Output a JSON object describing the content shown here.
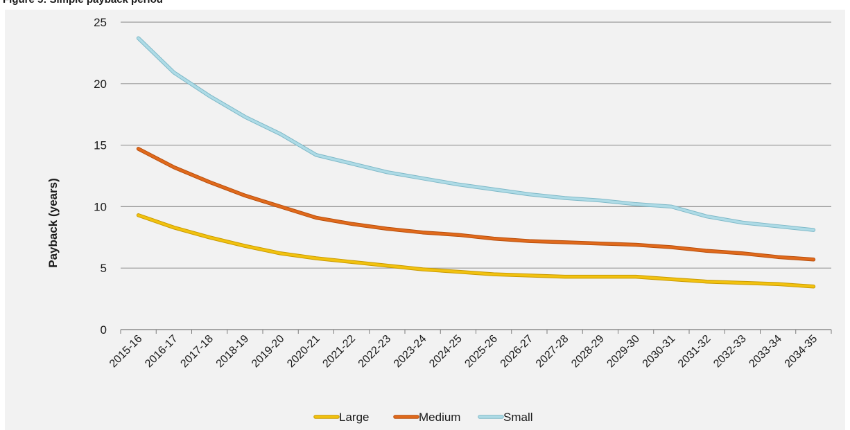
{
  "header": {
    "text": "Figure 5: Simple payback period"
  },
  "chart_data": {
    "type": "line",
    "title": "",
    "xlabel": "",
    "ylabel": "Payback (years)",
    "ylim": [
      0,
      25
    ],
    "yticks": [
      0,
      5,
      10,
      15,
      20,
      25
    ],
    "grid": "horizontal",
    "legend_position": "bottom",
    "categories": [
      "2015-16",
      "2016-17",
      "2017-18",
      "2018-19",
      "2019-20",
      "2020-21",
      "2021-22",
      "2022-23",
      "2023-24",
      "2024-25",
      "2025-26",
      "2026-27",
      "2027-28",
      "2028-29",
      "2029-30",
      "2030-31",
      "2031-32",
      "2032-33",
      "2033-34",
      "2034-35"
    ],
    "series": [
      {
        "name": "Large",
        "color": "#f2c20f",
        "outline": "#c99a00",
        "values": [
          9.3,
          8.3,
          7.5,
          6.8,
          6.2,
          5.8,
          5.5,
          5.2,
          4.9,
          4.7,
          4.5,
          4.4,
          4.3,
          4.3,
          4.3,
          4.1,
          3.9,
          3.8,
          3.7,
          3.5
        ]
      },
      {
        "name": "Medium",
        "color": "#e06a1c",
        "outline": "#b84e0c",
        "values": [
          14.7,
          13.2,
          12.0,
          10.9,
          10.0,
          9.1,
          8.6,
          8.2,
          7.9,
          7.7,
          7.4,
          7.2,
          7.1,
          7.0,
          6.9,
          6.7,
          6.4,
          6.2,
          5.9,
          5.7
        ]
      },
      {
        "name": "Small",
        "color": "#aedbe6",
        "outline": "#7fb9c8",
        "values": [
          23.7,
          20.9,
          19.0,
          17.3,
          15.9,
          14.2,
          13.5,
          12.8,
          12.3,
          11.8,
          11.4,
          11.0,
          10.7,
          10.5,
          10.2,
          10.0,
          9.2,
          8.7,
          8.4,
          8.1
        ]
      }
    ]
  }
}
